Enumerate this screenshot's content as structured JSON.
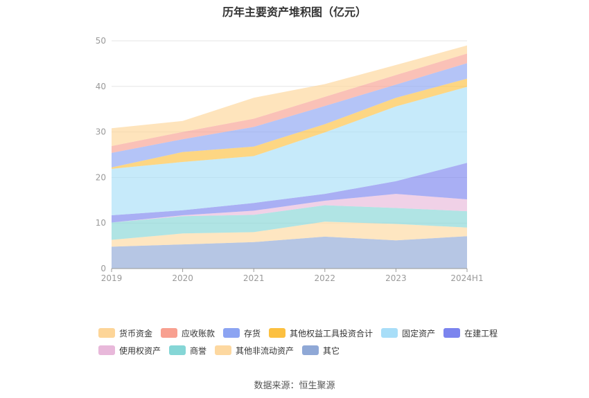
{
  "chart_data": {
    "type": "area",
    "stacked": true,
    "title": "历年主要资产堆积图（亿元）",
    "categories": [
      "2019",
      "2020",
      "2021",
      "2022",
      "2023",
      "2024H1"
    ],
    "ylim": [
      0,
      50
    ],
    "yticks": [
      0,
      10,
      20,
      30,
      40,
      50
    ],
    "grid": true,
    "legend_position": "bottom",
    "series": [
      {
        "name": "其它",
        "color": "#8fa8d6",
        "values": [
          4.8,
          5.3,
          5.8,
          7.0,
          6.2,
          7.1
        ]
      },
      {
        "name": "其他非流动资产",
        "color": "#fdd8a0",
        "values": [
          1.5,
          2.4,
          2.2,
          3.3,
          3.6,
          1.9
        ]
      },
      {
        "name": "商誉",
        "color": "#85d6d6",
        "values": [
          3.8,
          3.8,
          3.8,
          3.6,
          3.5,
          3.6
        ]
      },
      {
        "name": "使用权资产",
        "color": "#e8b8da",
        "values": [
          0.0,
          0.2,
          0.9,
          1.0,
          3.1,
          2.6
        ]
      },
      {
        "name": "在建工程",
        "color": "#7b84ee",
        "values": [
          1.6,
          1.1,
          1.7,
          1.5,
          2.8,
          8.0
        ]
      },
      {
        "name": "固定资产",
        "color": "#a8def8",
        "values": [
          10.2,
          10.6,
          10.3,
          13.5,
          16.4,
          16.7
        ]
      },
      {
        "name": "其他权益工具投资合计",
        "color": "#fcc040",
        "values": [
          0.3,
          2.2,
          2.1,
          1.8,
          1.9,
          1.8
        ]
      },
      {
        "name": "存货",
        "color": "#8ca4f2",
        "values": [
          3.2,
          2.8,
          4.3,
          4.0,
          2.9,
          3.4
        ]
      },
      {
        "name": "应收账款",
        "color": "#f8a090",
        "values": [
          1.5,
          1.6,
          1.8,
          2.0,
          2.1,
          2.1
        ]
      },
      {
        "name": "货币资金",
        "color": "#fdd598",
        "values": [
          3.9,
          2.4,
          4.6,
          2.8,
          2.2,
          1.8
        ]
      }
    ],
    "legend_order": [
      "货币资金",
      "应收账款",
      "存货",
      "其他权益工具投资合计",
      "固定资产",
      "在建工程",
      "使用权资产",
      "商誉",
      "其他非流动资产",
      "其它"
    ]
  },
  "source_text": "数据来源：恒生聚源"
}
